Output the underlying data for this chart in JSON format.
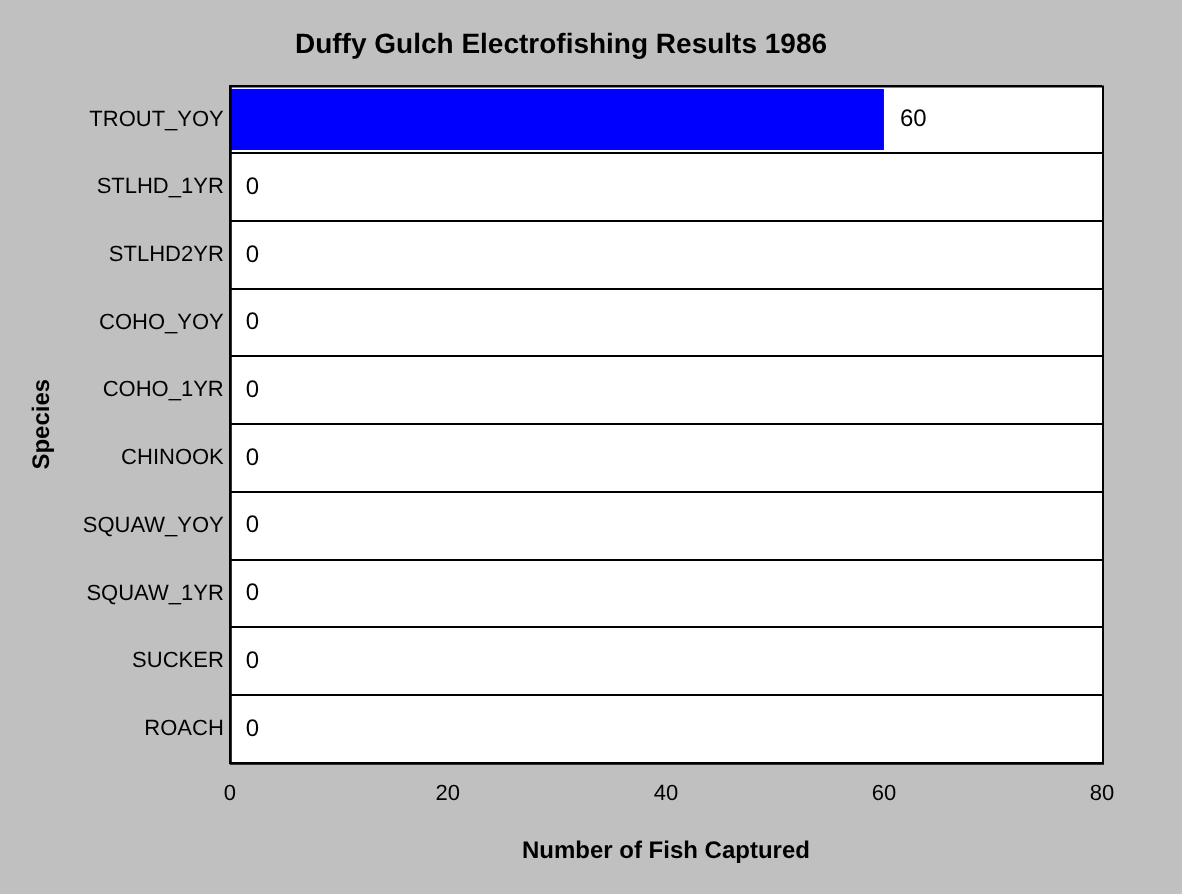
{
  "chart_data": {
    "type": "bar",
    "orientation": "horizontal",
    "title": "Duffy Gulch Electrofishing Results 1986",
    "xlabel": "Number of Fish Captured",
    "ylabel": "Species",
    "categories": [
      "TROUT_YOY",
      "STLHD_1YR",
      "STLHD2YR",
      "COHO_YOY",
      "COHO_1YR",
      "CHINOOK",
      "SQUAW_YOY",
      "SQUAW_1YR",
      "SUCKER",
      "ROACH"
    ],
    "values": [
      60,
      0,
      0,
      0,
      0,
      0,
      0,
      0,
      0,
      0
    ],
    "color": "#0000ff",
    "xlim": [
      0,
      80
    ],
    "xticks": [
      0,
      20,
      40,
      60,
      80
    ],
    "grid": "y",
    "data_labels": true
  }
}
